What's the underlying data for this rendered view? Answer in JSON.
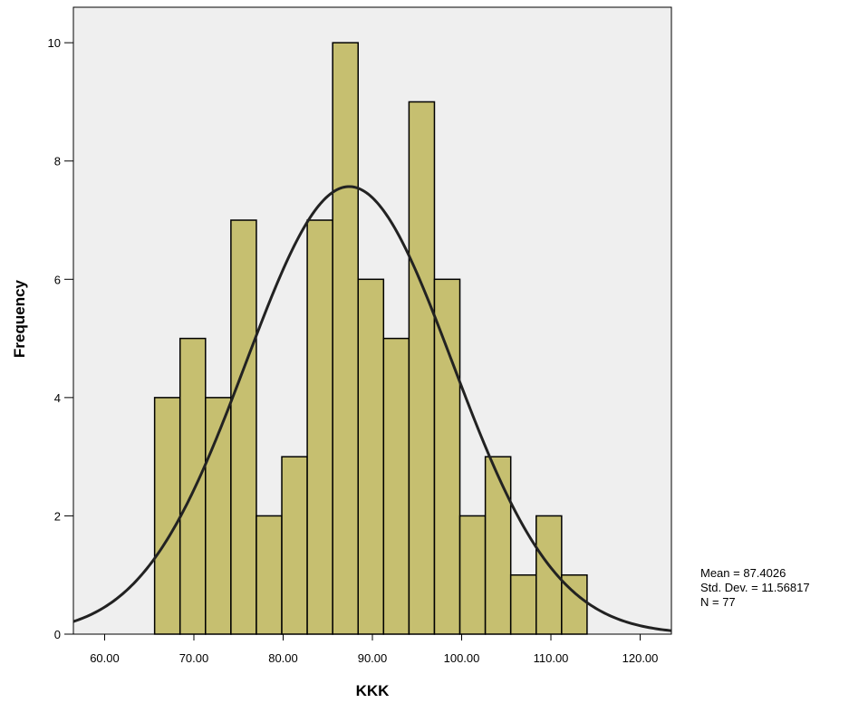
{
  "chart_data": {
    "type": "bar",
    "subtype": "histogram",
    "xlabel": "KKK",
    "ylabel": "Frequency",
    "xlim": [
      56.5,
      123.5
    ],
    "ylim": [
      0,
      10.6
    ],
    "x_ticks": [
      60,
      70,
      80,
      90,
      100,
      110,
      120
    ],
    "x_tick_labels": [
      "60.00",
      "70.00",
      "80.00",
      "90.00",
      "100.00",
      "110.00",
      "120.00"
    ],
    "y_ticks": [
      0,
      2,
      4,
      6,
      8,
      10
    ],
    "y_tick_labels": [
      "0",
      "2",
      "4",
      "6",
      "8",
      "10"
    ],
    "bin_width": 2.85,
    "bins": [
      {
        "start": 65.6,
        "end": 68.45,
        "count": 4
      },
      {
        "start": 68.45,
        "end": 71.3,
        "count": 5
      },
      {
        "start": 71.3,
        "end": 74.15,
        "count": 4
      },
      {
        "start": 74.15,
        "end": 77.0,
        "count": 7
      },
      {
        "start": 77.0,
        "end": 79.85,
        "count": 2
      },
      {
        "start": 79.85,
        "end": 82.7,
        "count": 3
      },
      {
        "start": 82.7,
        "end": 85.55,
        "count": 7
      },
      {
        "start": 85.55,
        "end": 88.4,
        "count": 10
      },
      {
        "start": 88.4,
        "end": 91.25,
        "count": 6
      },
      {
        "start": 91.25,
        "end": 94.1,
        "count": 5
      },
      {
        "start": 94.1,
        "end": 96.95,
        "count": 9
      },
      {
        "start": 96.95,
        "end": 99.8,
        "count": 6
      },
      {
        "start": 99.8,
        "end": 102.65,
        "count": 2
      },
      {
        "start": 102.65,
        "end": 105.5,
        "count": 3
      },
      {
        "start": 105.5,
        "end": 108.35,
        "count": 1
      },
      {
        "start": 108.35,
        "end": 111.2,
        "count": 2
      },
      {
        "start": 111.2,
        "end": 114.05,
        "count": 1
      }
    ],
    "normal_curve": {
      "mean": 87.4026,
      "std_dev": 11.56817,
      "n": 77
    },
    "stats": {
      "mean_label": "Mean = 87.4026",
      "std_label": "Std. Dev. = 11.56817",
      "n_label": "N = 77"
    },
    "grid": false,
    "colors": {
      "plot_background": "#efefef",
      "bar_fill": "#c6bf70",
      "bar_stroke": "#000000",
      "curve": "#222222"
    }
  }
}
